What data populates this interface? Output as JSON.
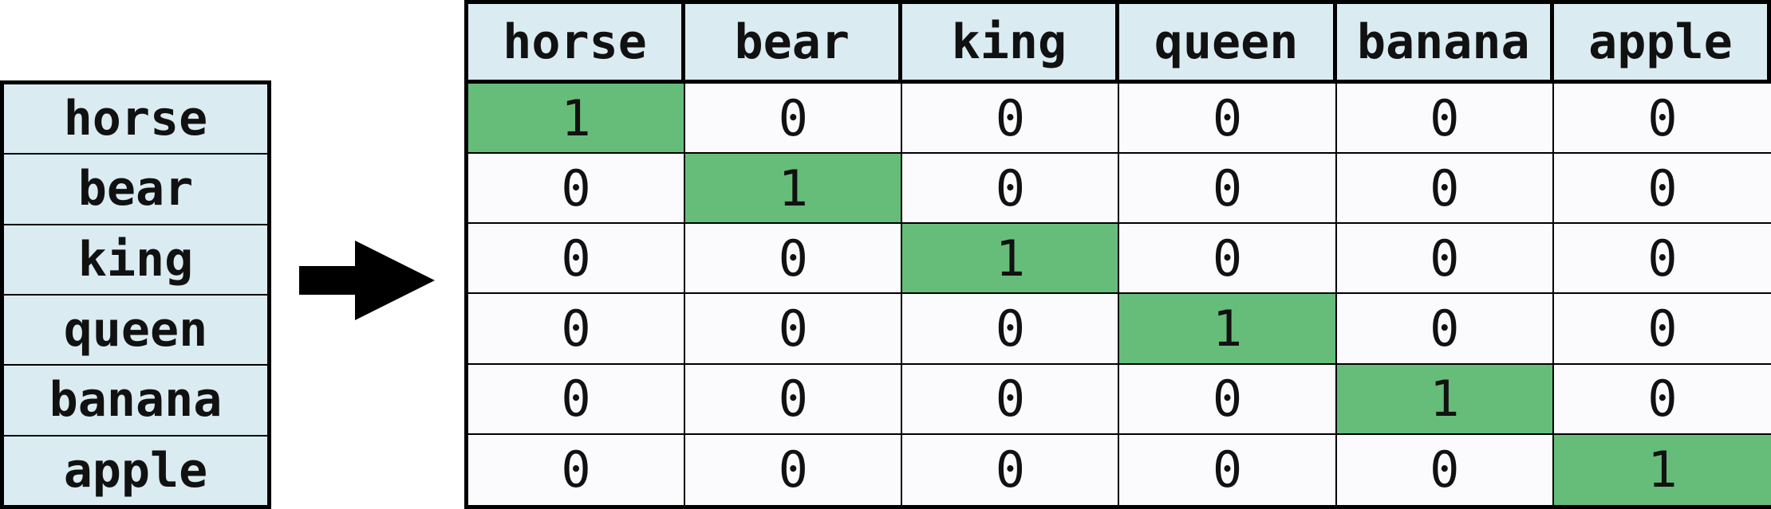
{
  "vocabulary": [
    "horse",
    "bear",
    "king",
    "queen",
    "banana",
    "apple"
  ],
  "matrix": {
    "headers": [
      "horse",
      "bear",
      "king",
      "queen",
      "banana",
      "apple"
    ],
    "rows": [
      [
        "1",
        "0",
        "0",
        "0",
        "0",
        "0"
      ],
      [
        "0",
        "1",
        "0",
        "0",
        "0",
        "0"
      ],
      [
        "0",
        "0",
        "1",
        "0",
        "0",
        "0"
      ],
      [
        "0",
        "0",
        "0",
        "1",
        "0",
        "0"
      ],
      [
        "0",
        "0",
        "0",
        "0",
        "1",
        "0"
      ],
      [
        "0",
        "0",
        "0",
        "0",
        "0",
        "1"
      ]
    ]
  },
  "colors": {
    "header_background": "#daecf1",
    "hot_cell": "#66bd7a",
    "cell_background": "#fbfbfd",
    "border": "#000000"
  },
  "icons": {
    "arrow": "right-arrow-icon"
  }
}
